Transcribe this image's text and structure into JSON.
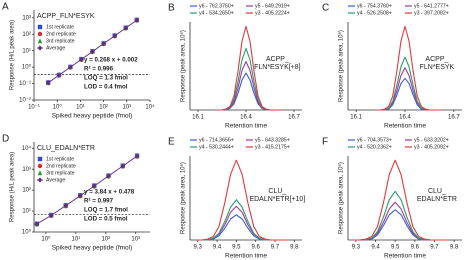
{
  "chart_data": [
    {
      "type": "scatter",
      "panel_label": "A",
      "title": "ACPP_FLN*ESYK",
      "x_label": "Spiked heavy peptide (fmol)",
      "y_label": "Response (H/L peak area)",
      "log_x": true,
      "log_y": true,
      "xlim": [
        0.1,
        10000
      ],
      "ylim": [
        0.01,
        3000
      ],
      "xticks": [
        {
          "value": 0.1,
          "label": "10⁻¹"
        },
        {
          "value": 1,
          "label": "10⁰"
        },
        {
          "value": 10,
          "label": "10¹"
        },
        {
          "value": 100,
          "label": "10²"
        },
        {
          "value": 1000,
          "label": "10³"
        },
        {
          "value": 10000,
          "label": "10⁴"
        }
      ],
      "yticks": [
        {
          "value": 0.01,
          "label": "10⁻²"
        },
        {
          "value": 0.1,
          "label": "10⁻¹"
        },
        {
          "value": 1,
          "label": "10⁰"
        },
        {
          "value": 10,
          "label": "10¹"
        },
        {
          "value": 100,
          "label": "10²"
        },
        {
          "value": 1000,
          "label": "10³"
        }
      ],
      "x": [
        0.41,
        1.2,
        3.7,
        11,
        33,
        100,
        300,
        900,
        2700
      ],
      "series": [
        {
          "name": "1st  replicate",
          "color": "#2b4bd6",
          "marker": "square",
          "values": [
            0.118,
            0.34,
            1.04,
            3.1,
            9.3,
            28.1,
            84,
            253,
            760
          ]
        },
        {
          "name": "2nd  replicate",
          "color": "#d62b2b",
          "marker": "circle",
          "values": [
            0.106,
            0.31,
            0.95,
            2.8,
            8.4,
            25.5,
            76,
            229,
            690
          ]
        },
        {
          "name": "3rd  replicate",
          "color": "#2b9b2b",
          "marker": "triangle",
          "values": [
            0.112,
            0.32,
            0.99,
            2.95,
            8.85,
            26.8,
            81,
            241,
            722
          ]
        },
        {
          "name": "Average",
          "color": "#5a2a8a",
          "marker": "diamond",
          "line": true,
          "values": [
            0.112,
            0.324,
            0.994,
            2.95,
            8.85,
            26.8,
            80.4,
            241,
            724
          ]
        }
      ],
      "hlines": [
        0.35
      ],
      "annotations": [
        "y = 0.268 x + 0.002",
        "R² = 0.996",
        "LOQ = 1.3 fmol",
        "LOD = 0.4 fmol"
      ]
    },
    {
      "type": "line",
      "panel_label": "B",
      "x_label": "Retention time",
      "y_label": "Response (peak area, 10⁵)",
      "annotation": [
        "ACPP_",
        "FLN*ESYK[+8]"
      ],
      "xlim": [
        16.05,
        16.75
      ],
      "ylim": [
        0,
        100
      ],
      "xticks": [
        16.1,
        16.4,
        16.7
      ],
      "x": [
        16.225,
        16.25,
        16.275,
        16.3,
        16.325,
        16.35,
        16.375,
        16.4,
        16.425,
        16.45,
        16.475,
        16.5,
        16.525,
        16.55,
        16.575,
        16.6,
        16.625
      ],
      "series": [
        {
          "name": "y6 - 762.3760+",
          "color": "#3a5fcd",
          "values": [
            0,
            0,
            0,
            2,
            7,
            19,
            34,
            42,
            34,
            19,
            7,
            2,
            0,
            0,
            0,
            0,
            0
          ]
        },
        {
          "name": "y5 - 649.2919+",
          "color": "#a03c9a",
          "values": [
            0,
            0,
            1,
            2,
            9,
            25,
            45,
            55,
            45,
            25,
            9,
            2,
            1,
            0,
            0,
            0,
            0
          ]
        },
        {
          "name": "y4 - 534.2650+",
          "color": "#2e9b6e",
          "values": [
            0,
            0,
            1,
            3,
            12,
            32,
            57,
            70,
            57,
            32,
            12,
            3,
            1,
            0,
            0,
            0,
            0
          ]
        },
        {
          "name": "y3 - 405.2224+",
          "color": "#e0393e",
          "values": [
            0,
            0,
            1,
            4,
            16,
            44,
            78,
            95,
            78,
            44,
            16,
            4,
            1,
            0,
            0,
            0,
            0
          ]
        }
      ]
    },
    {
      "type": "line",
      "panel_label": "C",
      "x_label": "Retention time",
      "y_label": "Response (peak area, 10⁶)",
      "annotation": [
        "ACPP_",
        "FLN*ESYK"
      ],
      "xlim": [
        16.05,
        16.75
      ],
      "ylim": [
        0,
        100
      ],
      "xticks": [
        16.1,
        16.4,
        16.7
      ],
      "x": [
        16.225,
        16.25,
        16.275,
        16.3,
        16.325,
        16.35,
        16.375,
        16.4,
        16.425,
        16.45,
        16.475,
        16.5,
        16.525,
        16.55,
        16.575,
        16.6,
        16.625
      ],
      "series": [
        {
          "name": "y6 - 754.3760+",
          "color": "#3a5fcd",
          "values": [
            0,
            0,
            0,
            1,
            6,
            17,
            30,
            36,
            30,
            17,
            6,
            1,
            0,
            0,
            0,
            0,
            0
          ]
        },
        {
          "name": "y5 - 641.2777+",
          "color": "#a03c9a",
          "values": [
            0,
            0,
            0,
            2,
            8,
            22,
            39,
            48,
            39,
            22,
            8,
            2,
            0,
            0,
            0,
            0,
            0
          ]
        },
        {
          "name": "y4 - 526.2508+",
          "color": "#2e9b6e",
          "values": [
            0,
            0,
            1,
            2,
            10,
            28,
            49,
            60,
            49,
            28,
            10,
            2,
            1,
            0,
            0,
            0,
            0
          ]
        },
        {
          "name": "y3 - 397.2082+",
          "color": "#e0393e",
          "values": [
            0,
            0,
            1,
            4,
            16,
            44,
            78,
            95,
            78,
            44,
            16,
            4,
            1,
            0,
            0,
            0,
            0
          ]
        }
      ]
    },
    {
      "type": "scatter",
      "panel_label": "D",
      "title": "CLU_EDALN*ETR",
      "x_label": "Spiked heavy peptide (fmol)",
      "y_label": "Response (H/L peak area)",
      "log_x": true,
      "log_y": true,
      "xlim": [
        0.4,
        3000
      ],
      "ylim": [
        1,
        20000
      ],
      "xticks": [
        {
          "value": 1,
          "label": "10⁰"
        },
        {
          "value": 10,
          "label": "10¹"
        },
        {
          "value": 100,
          "label": "10²"
        },
        {
          "value": 1000,
          "label": "10³"
        }
      ],
      "yticks": [
        {
          "value": 1,
          "label": "10⁰"
        },
        {
          "value": 10,
          "label": "10¹"
        },
        {
          "value": 100,
          "label": "10²"
        },
        {
          "value": 1000,
          "label": "10³"
        },
        {
          "value": 10000,
          "label": "10⁴"
        }
      ],
      "x": [
        0.5,
        1.5,
        4.6,
        14,
        41,
        123,
        370,
        1111
      ],
      "series": [
        {
          "name": "1st  replicate",
          "color": "#2b4bd6",
          "marker": "square",
          "values": [
            2.5,
            6.5,
            19,
            57,
            166,
            497,
            1490,
            4480
          ]
        },
        {
          "name": "2nd  replicate",
          "color": "#d62b2b",
          "marker": "circle",
          "values": [
            2.3,
            5.9,
            17.2,
            51.5,
            150,
            449,
            1350,
            4050
          ]
        },
        {
          "name": "3rd  replicate",
          "color": "#2b9b2b",
          "marker": "triangle",
          "values": [
            2.4,
            6.2,
            18.1,
            54.2,
            158,
            473,
            1421,
            4267
          ]
        },
        {
          "name": "Average",
          "color": "#5a2a8a",
          "marker": "diamond",
          "line": true,
          "values": [
            2.4,
            6.2,
            18.1,
            54.2,
            158,
            473,
            1421,
            4267
          ]
        }
      ],
      "hlines": [
        7
      ],
      "annotations": [
        "y = 3.84 x + 0.478",
        "R² = 0.997",
        "LOQ = 1.7 fmol",
        "LOD = 0.5 fmol"
      ]
    },
    {
      "type": "line",
      "panel_label": "E",
      "x_label": "Retention time",
      "y_label": "Response (peak area, 10⁶)",
      "annotation": [
        "CLU_",
        "EDALN*ETR[+10]"
      ],
      "xlim": [
        9.26,
        9.84
      ],
      "ylim": [
        0,
        100
      ],
      "xticks": [
        9.3,
        9.4,
        9.5,
        9.6,
        9.7,
        9.8
      ],
      "x": [
        9.29,
        9.32,
        9.35,
        9.38,
        9.41,
        9.44,
        9.47,
        9.5,
        9.53,
        9.56,
        9.59,
        9.62,
        9.65,
        9.68,
        9.71,
        9.74,
        9.77
      ],
      "series": [
        {
          "name": "y6 - 714.3656+",
          "color": "#3a5fcd",
          "values": [
            0,
            0,
            0,
            1,
            5,
            14,
            25,
            30,
            25,
            14,
            5,
            1,
            0,
            0,
            0,
            0,
            0
          ]
        },
        {
          "name": "y5 - 643.3285+",
          "color": "#a03c9a",
          "values": [
            0,
            0,
            0,
            2,
            7,
            18,
            33,
            40,
            33,
            18,
            7,
            2,
            0,
            0,
            0,
            0,
            0
          ]
        },
        {
          "name": "y4 - 530.2444+",
          "color": "#2e9b6e",
          "values": [
            0,
            0,
            0,
            2,
            8,
            22,
            39,
            48,
            39,
            22,
            8,
            2,
            0,
            0,
            0,
            0,
            0
          ]
        },
        {
          "name": "y3 - 415.2175+",
          "color": "#e0393e",
          "values": [
            0,
            0,
            1,
            4,
            16,
            44,
            78,
            95,
            78,
            44,
            16,
            4,
            1,
            0,
            0,
            0,
            0
          ]
        }
      ]
    },
    {
      "type": "line",
      "panel_label": "F",
      "x_label": "Retention time",
      "y_label": "Response (peak area, 10⁶)",
      "annotation": [
        "CLU_",
        "EDALN*ETR"
      ],
      "xlim": [
        9.26,
        9.84
      ],
      "ylim": [
        0,
        100
      ],
      "xticks": [
        9.3,
        9.4,
        9.5,
        9.6,
        9.7,
        9.8
      ],
      "x": [
        9.29,
        9.32,
        9.35,
        9.38,
        9.41,
        9.44,
        9.47,
        9.5,
        9.53,
        9.56,
        9.59,
        9.62,
        9.65,
        9.68,
        9.71,
        9.74,
        9.77
      ],
      "series": [
        {
          "name": "y6 - 704.3573+",
          "color": "#3a5fcd",
          "values": [
            0,
            0,
            0,
            1,
            6,
            17,
            30,
            36,
            30,
            17,
            6,
            1,
            0,
            0,
            0,
            0,
            0
          ]
        },
        {
          "name": "y5 - 633.3202+",
          "color": "#a03c9a",
          "values": [
            0,
            0,
            0,
            2,
            8,
            21,
            37,
            45,
            37,
            21,
            8,
            2,
            0,
            0,
            0,
            0,
            0
          ]
        },
        {
          "name": "y4 - 520.2362+",
          "color": "#2e9b6e",
          "values": [
            0,
            0,
            1,
            2,
            10,
            27,
            48,
            58,
            48,
            27,
            10,
            2,
            1,
            0,
            0,
            0,
            0
          ]
        },
        {
          "name": "y3 - 405.2092+",
          "color": "#e0393e",
          "values": [
            0,
            0,
            1,
            4,
            16,
            44,
            78,
            95,
            78,
            44,
            16,
            4,
            1,
            0,
            0,
            0,
            0
          ]
        }
      ]
    }
  ]
}
